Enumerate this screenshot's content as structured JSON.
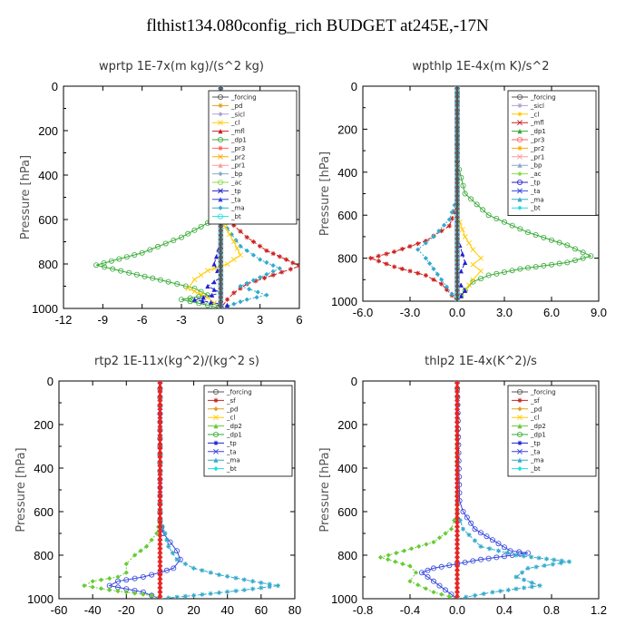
{
  "title": "flthist134.080config_rich  BUDGET at245E,-17N",
  "colors": {
    "forcing": "#555555",
    "pd": "#e0a020",
    "sicl": "#b0a0d0",
    "cl": "#ffcc00",
    "mfl": "#cc2020",
    "dp1": "#33aa33",
    "dp2": "#66cc33",
    "pr3": "#ff6060",
    "pr2": "#ffaa00",
    "pr1": "#ff9999",
    "bp": "#88aacc",
    "ac": "#88dd44",
    "tp": "#2020cc",
    "ta": "#3344dd",
    "ma": "#33aacc",
    "bt": "#22dddd",
    "sf": "#cc2020",
    "red": "#ee2020",
    "green": "#33aa22"
  },
  "chart_data": [
    {
      "type": "line",
      "title": "wprtp   1E-7x(m kg)/(s^2 kg)",
      "ylabel": "Pressure [hPa]",
      "ylim": [
        1000,
        0
      ],
      "xlim": [
        -12,
        6
      ],
      "xticks": [
        -12,
        -9,
        -6,
        -3,
        0,
        3,
        6
      ],
      "yticks": [
        0,
        200,
        400,
        600,
        800,
        1000
      ],
      "legend": [
        "_forcing",
        "_pd",
        "_sicl",
        "_cl",
        "_mfl",
        "_dp1",
        "_pr3",
        "_pr2",
        "_pr1",
        "_bp",
        "_ac",
        "_tp",
        "_ta",
        "_ma",
        "_bt"
      ],
      "series": [
        {
          "name": "_dp1",
          "color": "#33aa33",
          "x": [
            0,
            0,
            -0.5,
            -3,
            -6,
            -9.5,
            -7,
            -4,
            -2,
            -1,
            -3,
            -1,
            0
          ],
          "y": [
            0,
            520,
            600,
            680,
            750,
            805,
            840,
            880,
            910,
            940,
            960,
            985,
            1000
          ]
        },
        {
          "name": "_mfl",
          "color": "#cc2020",
          "x": [
            0,
            0,
            0.5,
            2,
            3.5,
            5,
            6,
            4,
            2,
            1,
            0.5,
            0
          ],
          "y": [
            0,
            520,
            600,
            680,
            740,
            780,
            810,
            850,
            890,
            930,
            960,
            1000
          ]
        },
        {
          "name": "_ma",
          "color": "#33aacc",
          "x": [
            0,
            0,
            0.5,
            1.5,
            3,
            4.5,
            3,
            1.5,
            3.5,
            2,
            1,
            0
          ],
          "y": [
            0,
            560,
            640,
            720,
            780,
            820,
            860,
            900,
            940,
            960,
            980,
            1000
          ]
        },
        {
          "name": "_cl",
          "color": "#ffcc00",
          "x": [
            0,
            0,
            1,
            1.5,
            0.5,
            -1,
            -2,
            -2.5,
            -1,
            0
          ],
          "y": [
            0,
            600,
            700,
            760,
            800,
            830,
            870,
            910,
            950,
            1000
          ]
        },
        {
          "name": "_tp",
          "color": "#2020cc",
          "x": [
            0,
            0,
            -0.5,
            0,
            -1,
            0,
            -2,
            0.5,
            0
          ],
          "y": [
            0,
            700,
            800,
            860,
            900,
            930,
            960,
            985,
            1000
          ]
        },
        {
          "name": "_sicl",
          "color": "#b0a0d0",
          "x": [
            0,
            0
          ],
          "y": [
            0,
            1000
          ]
        },
        {
          "name": "_bt",
          "color": "#22dddd",
          "x": [
            0,
            0
          ],
          "y": [
            0,
            1000
          ]
        },
        {
          "name": "_forcing",
          "color": "#555555",
          "x": [
            0,
            0
          ],
          "y": [
            0,
            1000
          ]
        }
      ]
    },
    {
      "type": "line",
      "title": "wpthlp   1E-4x(m K)/s^2",
      "ylabel": "Pressure [hPa]",
      "ylim": [
        1000,
        0
      ],
      "xlim": [
        -6,
        9
      ],
      "xticks": [
        -6,
        -3,
        0,
        3,
        6,
        9
      ],
      "xticklabels": [
        "-6.0",
        "-3.0",
        "0.0",
        "3.0",
        "6.0",
        "9.0"
      ],
      "yticks": [
        0,
        200,
        400,
        600,
        800,
        1000
      ],
      "legend": [
        "_forcing",
        "_sicl",
        "_cl",
        "_mfl",
        "_dp1",
        "_pr3",
        "_pr2",
        "_pr1",
        "_bp",
        "_ac",
        "_tp",
        "_ta",
        "_ma",
        "_bt"
      ],
      "series": [
        {
          "name": "_dp1",
          "color": "#33aa33",
          "x": [
            0,
            0,
            0.5,
            2,
            4.5,
            7,
            8.5,
            7,
            4,
            2,
            1,
            0.5,
            0
          ],
          "y": [
            0,
            350,
            500,
            600,
            680,
            740,
            790,
            820,
            850,
            880,
            910,
            950,
            1000
          ]
        },
        {
          "name": "_mfl",
          "color": "#cc2020",
          "x": [
            0,
            0,
            -0.5,
            -2,
            -4,
            -5.5,
            -4,
            -2,
            -1,
            0
          ],
          "y": [
            0,
            550,
            650,
            720,
            770,
            800,
            840,
            880,
            920,
            1000
          ]
        },
        {
          "name": "_ma",
          "color": "#33aacc",
          "x": [
            0,
            0,
            -0.5,
            -1.5,
            -2.5,
            -2,
            -1.5,
            -1,
            0
          ],
          "y": [
            0,
            520,
            620,
            700,
            760,
            800,
            850,
            900,
            1000
          ]
        },
        {
          "name": "_cl",
          "color": "#ffcc00",
          "x": [
            0,
            0,
            0.5,
            1,
            1.5,
            1,
            1.5,
            1,
            0.5,
            0
          ],
          "y": [
            0,
            600,
            700,
            760,
            800,
            830,
            860,
            900,
            950,
            1000
          ]
        },
        {
          "name": "_tp",
          "color": "#2020cc",
          "x": [
            0,
            0,
            0.5,
            0,
            0.5,
            0
          ],
          "y": [
            0,
            700,
            820,
            900,
            950,
            1000
          ]
        },
        {
          "name": "_sicl",
          "color": "#b0a0d0",
          "x": [
            0,
            0
          ],
          "y": [
            0,
            1000
          ]
        },
        {
          "name": "_bt",
          "color": "#22dddd",
          "x": [
            0,
            0
          ],
          "y": [
            0,
            1000
          ]
        },
        {
          "name": "_forcing",
          "color": "#555555",
          "x": [
            0,
            0
          ],
          "y": [
            0,
            1000
          ]
        }
      ]
    },
    {
      "type": "line",
      "title": "rtp2   1E-11x(kg^2)/(kg^2 s)",
      "ylabel": "Pressure [hPa]",
      "ylim": [
        1000,
        0
      ],
      "xlim": [
        -60,
        80
      ],
      "xticks": [
        -60,
        -40,
        -20,
        0,
        20,
        40,
        60,
        80
      ],
      "yticks": [
        0,
        200,
        400,
        600,
        800,
        1000
      ],
      "legend": [
        "_forcing",
        "_sf",
        "_pd",
        "_cl",
        "_dp2",
        "_dp1",
        "_tp",
        "_ta",
        "_ma",
        "_bt"
      ],
      "series": [
        {
          "name": "_ta",
          "color": "#3344dd",
          "x": [
            0,
            0,
            2,
            6,
            10,
            12,
            8,
            0,
            -10,
            -25,
            -30,
            -10,
            0
          ],
          "y": [
            0,
            640,
            700,
            740,
            780,
            820,
            860,
            880,
            900,
            920,
            940,
            970,
            1000
          ]
        },
        {
          "name": "_ma",
          "color": "#33aacc",
          "x": [
            0,
            0,
            3,
            5,
            10,
            20,
            35,
            55,
            70,
            50,
            20,
            0
          ],
          "y": [
            0,
            640,
            700,
            760,
            820,
            860,
            890,
            920,
            940,
            960,
            985,
            1000
          ]
        },
        {
          "name": "_dp2",
          "color": "#66cc33",
          "x": [
            0,
            0,
            -2,
            -8,
            -15,
            -20,
            -20,
            -25,
            -40,
            -45,
            -30,
            -5,
            0
          ],
          "y": [
            0,
            640,
            700,
            760,
            800,
            840,
            880,
            900,
            920,
            940,
            960,
            985,
            1000
          ]
        },
        {
          "name": "_sf",
          "color": "#cc2020",
          "x": [
            0,
            0
          ],
          "y": [
            0,
            1000
          ]
        },
        {
          "name": "_forcing",
          "color": "#ee2020",
          "x": [
            0,
            0
          ],
          "y": [
            0,
            1000
          ]
        }
      ]
    },
    {
      "type": "line",
      "title": "thlp2   1E-4x(K^2)/s",
      "ylabel": "Pressure [hPa]",
      "ylim": [
        1000,
        0
      ],
      "xlim": [
        -0.8,
        1.2
      ],
      "xticks": [
        -0.8,
        -0.4,
        0,
        0.4,
        0.8,
        1.2
      ],
      "xticklabels": [
        "-0.8",
        "-0.4",
        "0.0",
        "0.4",
        "0.8",
        "1.2"
      ],
      "yticks": [
        0,
        200,
        400,
        600,
        800,
        1000
      ],
      "legend": [
        "_forcing",
        "_sf",
        "_pd",
        "_cl",
        "_dp2",
        "_dp1",
        "_tp",
        "_ta",
        "_ma",
        "_bt"
      ],
      "series": [
        {
          "name": "_ta",
          "color": "#3344dd",
          "x": [
            0,
            0.02,
            0.05,
            0.15,
            0.3,
            0.45,
            0.6,
            0.2,
            -0.2,
            -0.3,
            -0.2,
            0
          ],
          "y": [
            0,
            550,
            600,
            680,
            730,
            780,
            790,
            820,
            860,
            880,
            920,
            1000
          ]
        },
        {
          "name": "_ma",
          "color": "#33aacc",
          "x": [
            0,
            0,
            0.05,
            0.2,
            0.5,
            0.95,
            0.6,
            0.5,
            0.7,
            0.3,
            0
          ],
          "y": [
            0,
            600,
            680,
            760,
            800,
            830,
            860,
            900,
            940,
            970,
            1000
          ]
        },
        {
          "name": "_dp2",
          "color": "#66cc33",
          "x": [
            0,
            0,
            -0.05,
            -0.2,
            -0.45,
            -0.65,
            -0.4,
            -0.35,
            -0.4,
            -0.2,
            0
          ],
          "y": [
            0,
            600,
            680,
            740,
            780,
            810,
            850,
            880,
            920,
            970,
            1000
          ]
        },
        {
          "name": "_sf",
          "color": "#cc2020",
          "x": [
            0,
            0
          ],
          "y": [
            0,
            1000
          ]
        },
        {
          "name": "_forcing",
          "color": "#ee2020",
          "x": [
            0,
            0
          ],
          "y": [
            0,
            1000
          ]
        }
      ]
    }
  ]
}
